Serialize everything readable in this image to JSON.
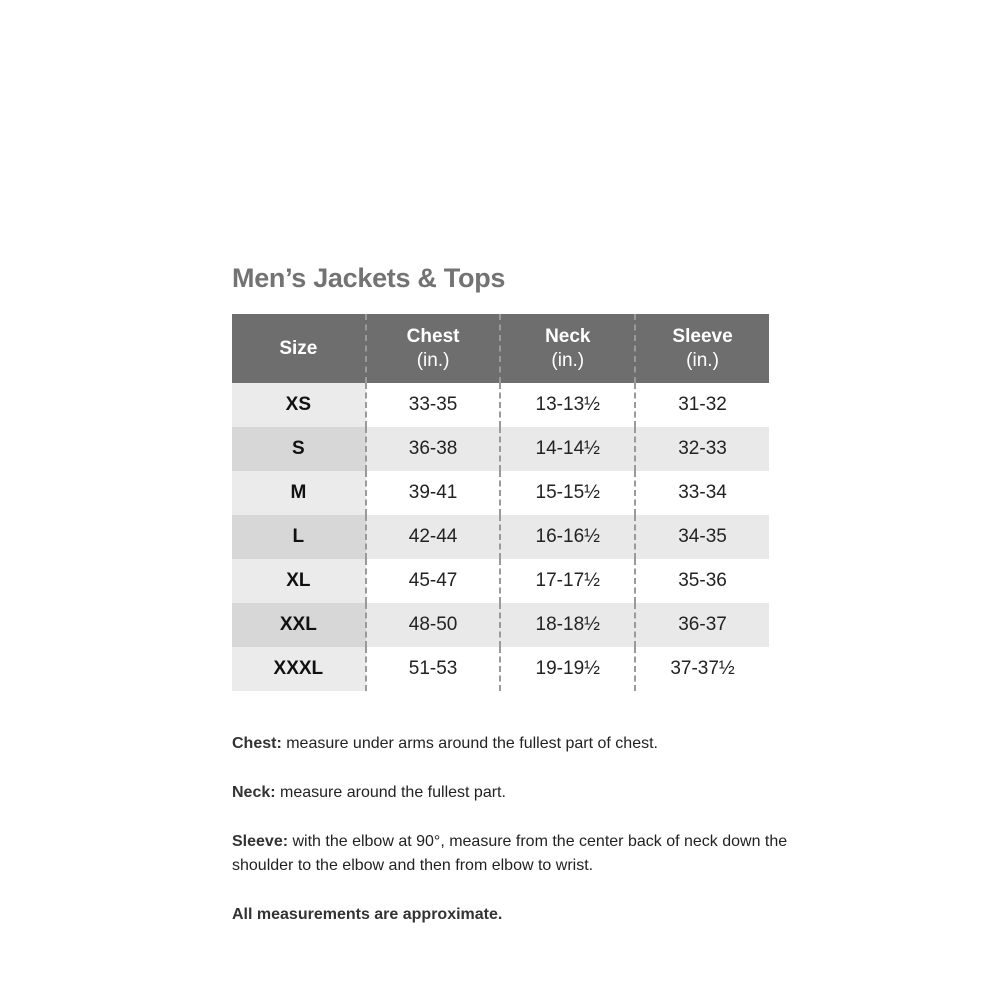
{
  "title": "Men’s Jackets & Tops",
  "table": {
    "headers": [
      {
        "label": "Size",
        "unit": ""
      },
      {
        "label": "Chest",
        "unit": "(in.)"
      },
      {
        "label": "Neck",
        "unit": "(in.)"
      },
      {
        "label": "Sleeve",
        "unit": "(in.)"
      }
    ],
    "rows": [
      [
        "XS",
        "33-35",
        "13-13½",
        "31-32"
      ],
      [
        "S",
        "36-38",
        "14-14½",
        "32-33"
      ],
      [
        "M",
        "39-41",
        "15-15½",
        "33-34"
      ],
      [
        "L",
        "42-44",
        "16-16½",
        "34-35"
      ],
      [
        "XL",
        "45-47",
        "17-17½",
        "35-36"
      ],
      [
        "XXL",
        "48-50",
        "18-18½",
        "36-37"
      ],
      [
        "XXXL",
        "51-53",
        "19-19½",
        "37-37½"
      ]
    ]
  },
  "notes": [
    {
      "term": "Chest:",
      "text": " measure under arms around the fullest part of chest."
    },
    {
      "term": "Neck:",
      "text": " measure around the fullest part."
    },
    {
      "term": "Sleeve:",
      "text": " with the elbow at 90°, measure from the center back of neck down the shoulder to the elbow and then from elbow to wrist."
    },
    {
      "term": "All measurements are approximate.",
      "text": ""
    }
  ],
  "colors": {
    "header_bg": "#6e6e6e",
    "title": "#737373",
    "stripe": "#e9e9e9"
  }
}
